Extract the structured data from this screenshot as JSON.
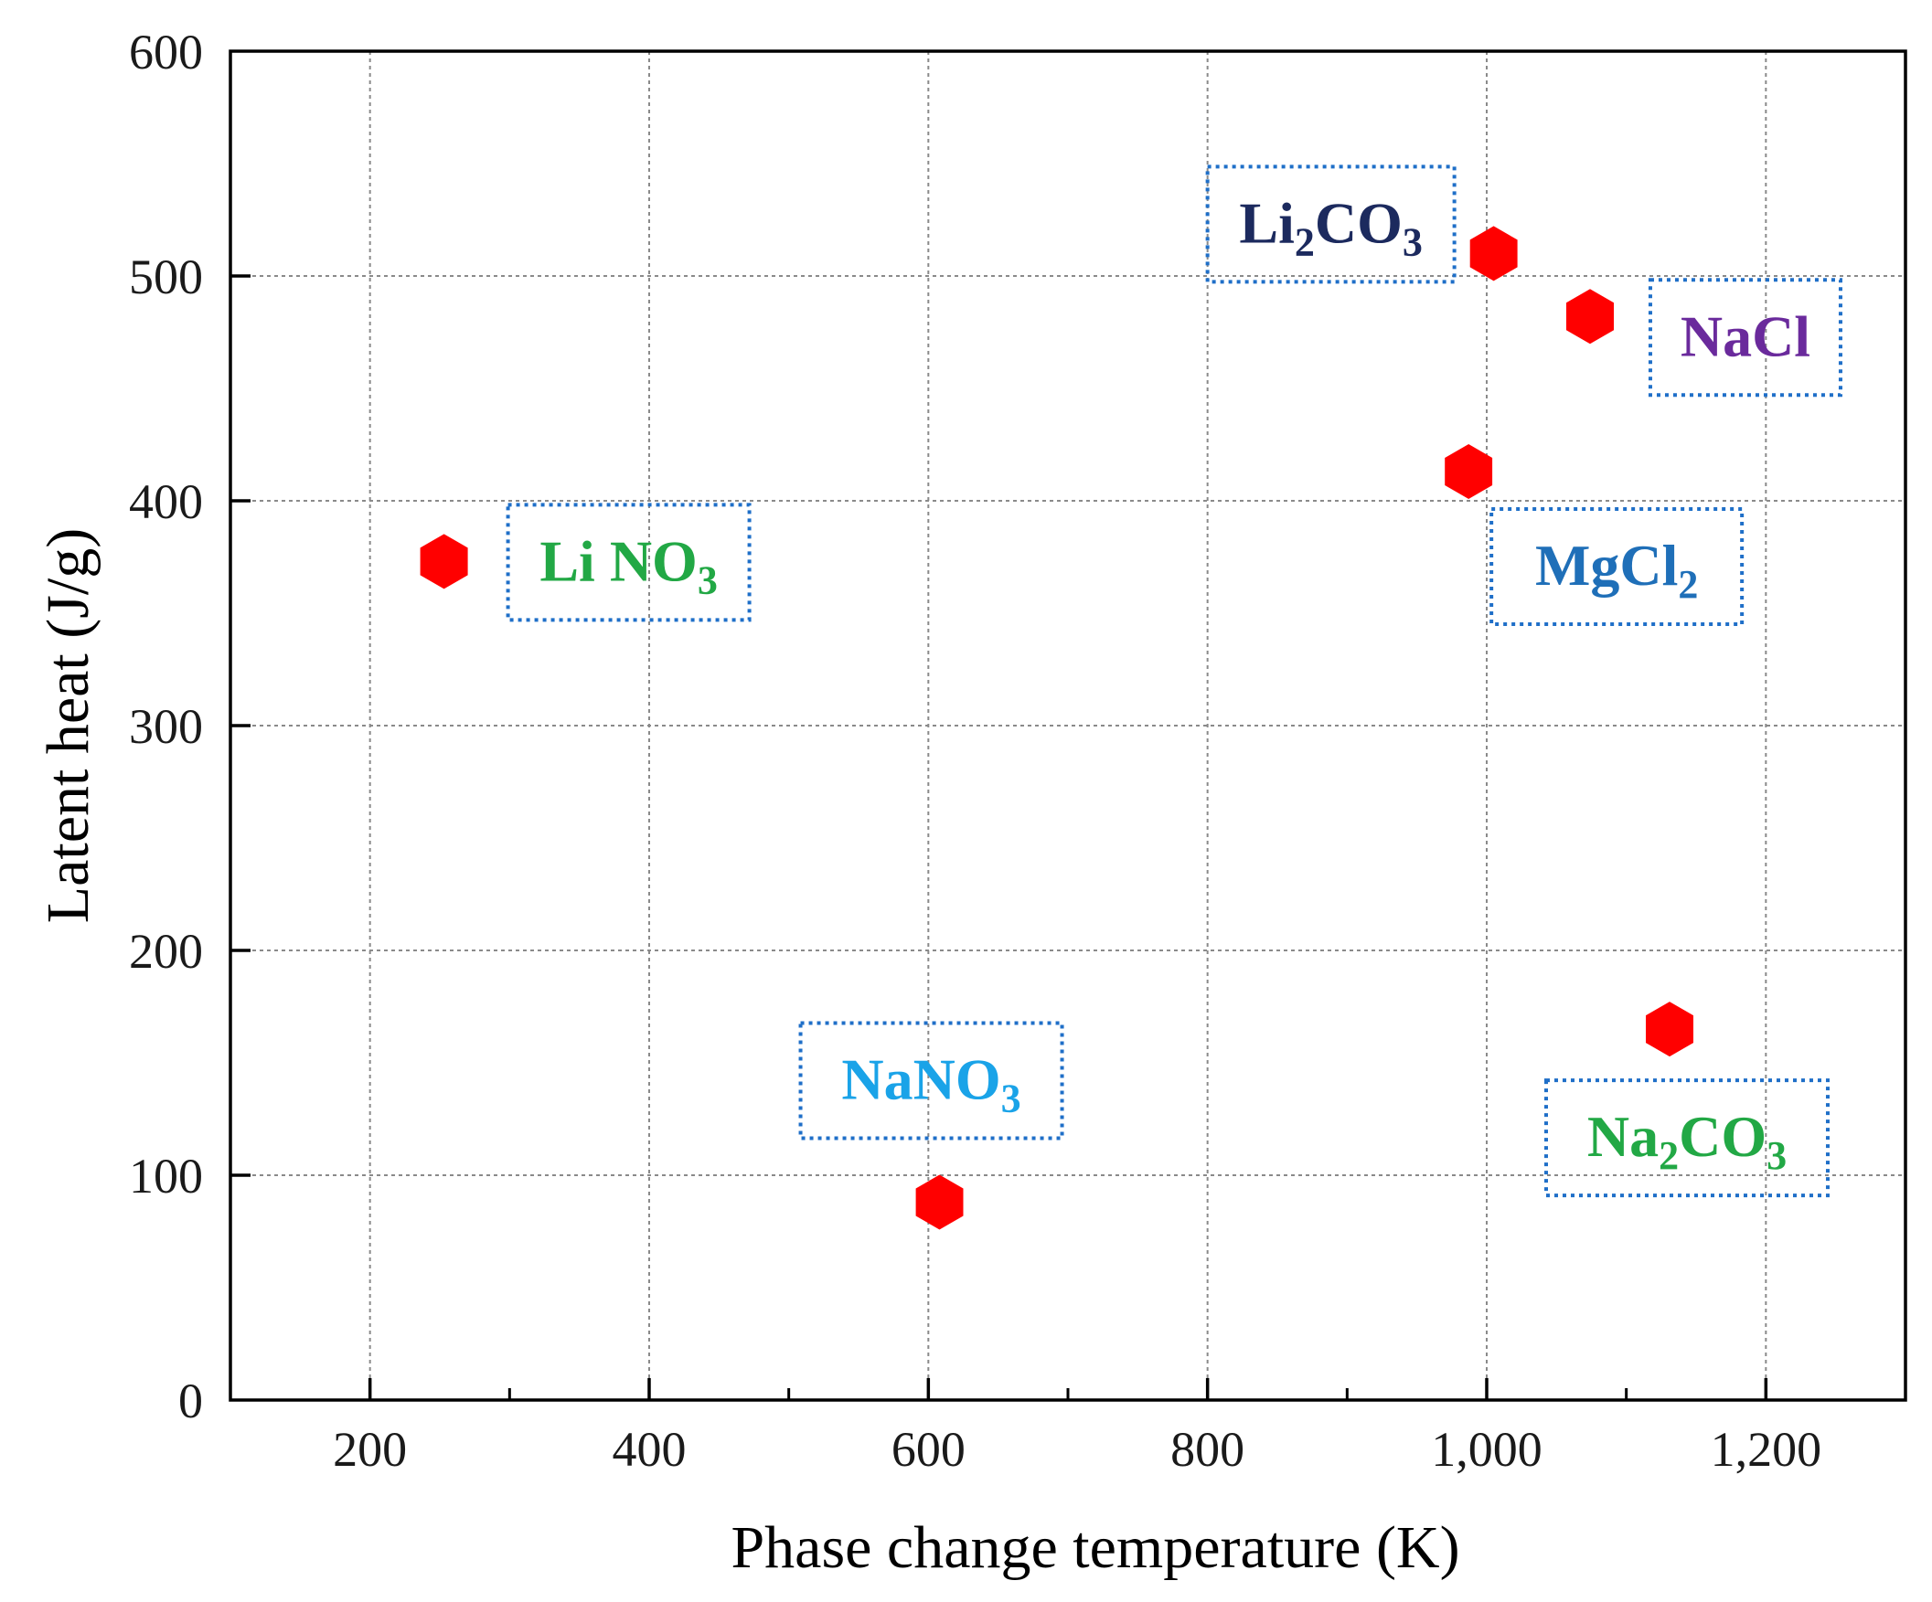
{
  "chart_data": {
    "type": "scatter",
    "title": "",
    "xlabel": "Phase change temperature (K)",
    "ylabel": "Latent heat (J/g)",
    "xlim": [
      100,
      1300
    ],
    "ylim": [
      0,
      600
    ],
    "x_ticks": [
      {
        "value": 200,
        "label": "200"
      },
      {
        "value": 400,
        "label": "400"
      },
      {
        "value": 600,
        "label": "600"
      },
      {
        "value": 800,
        "label": "800"
      },
      {
        "value": 1000,
        "label": "1,000"
      },
      {
        "value": 1200,
        "label": "1,200"
      }
    ],
    "y_ticks": [
      {
        "value": 0,
        "label": "0"
      },
      {
        "value": 100,
        "label": "100"
      },
      {
        "value": 200,
        "label": "200"
      },
      {
        "value": 300,
        "label": "300"
      },
      {
        "value": 400,
        "label": "400"
      },
      {
        "value": 500,
        "label": "500"
      },
      {
        "value": 600,
        "label": "600"
      }
    ],
    "grid": true,
    "marker": "hexagon",
    "marker_color": "#ff0000",
    "points": [
      {
        "name": "LiNO3",
        "x": 253,
        "y": 373
      },
      {
        "name": "NaNO3",
        "x": 608,
        "y": 88
      },
      {
        "name": "Li2CO3",
        "x": 1005,
        "y": 510
      },
      {
        "name": "NaCl",
        "x": 1074,
        "y": 482
      },
      {
        "name": "MgCl2",
        "x": 987,
        "y": 413
      },
      {
        "name": "Na2CO3",
        "x": 1131,
        "y": 165
      }
    ],
    "annotations": [
      {
        "point": "Li2CO3",
        "parts": [
          {
            "t": "Li"
          },
          {
            "t": "2",
            "sub": true
          },
          {
            "t": "CO"
          },
          {
            "t": "3",
            "sub": true
          }
        ],
        "color": "#1c2a5e"
      },
      {
        "point": "NaCl",
        "parts": [
          {
            "t": "NaCl"
          }
        ],
        "color": "#6a2a9c"
      },
      {
        "point": "MgCl2",
        "parts": [
          {
            "t": "MgCl"
          },
          {
            "t": "2",
            "sub": true
          }
        ],
        "color": "#1f6fb8"
      },
      {
        "point": "LiNO3",
        "parts": [
          {
            "t": "Li NO"
          },
          {
            "t": "3",
            "sub": true
          }
        ],
        "color": "#22a845"
      },
      {
        "point": "NaNO3",
        "parts": [
          {
            "t": "NaNO"
          },
          {
            "t": "3",
            "sub": true
          }
        ],
        "color": "#1aa3e8"
      },
      {
        "point": "Na2CO3",
        "parts": [
          {
            "t": "Na"
          },
          {
            "t": "2",
            "sub": true
          },
          {
            "t": "CO"
          },
          {
            "t": "3",
            "sub": true
          }
        ],
        "color": "#22a845"
      }
    ],
    "annotation_box_color": "#1f6fc8"
  }
}
